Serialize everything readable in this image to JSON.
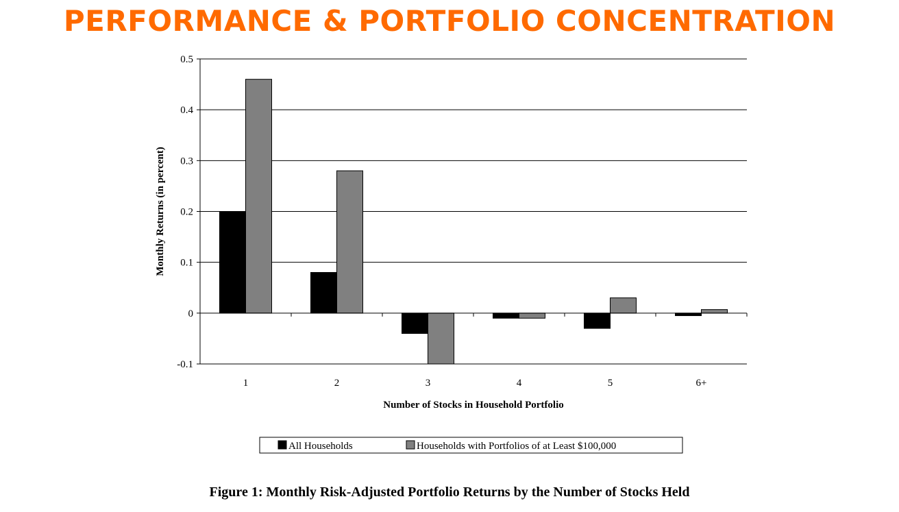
{
  "slide_title": "PERFORMANCE & PORTFOLIO CONCENTRATION",
  "caption": "Figure 1:  Monthly Risk-Adjusted Portfolio Returns by the Number of Stocks Held",
  "colors": {
    "title": "#ff6a00",
    "series_1": "#000000",
    "series_2": "#808080"
  },
  "chart_data": {
    "type": "bar",
    "title": "",
    "categories": [
      "1",
      "2",
      "3",
      "4",
      "5",
      "6+"
    ],
    "series": [
      {
        "name": "All Households",
        "values": [
          0.2,
          0.08,
          -0.04,
          -0.01,
          -0.03,
          -0.005
        ]
      },
      {
        "name": "Households with Portfolios of at Least $100,000",
        "values": [
          0.46,
          0.28,
          -0.1,
          -0.01,
          0.03,
          0.007
        ]
      }
    ],
    "xlabel": "Number of Stocks in Household Portfolio",
    "ylabel": "Monthly Returns (in percent)",
    "ylim": [
      -0.1,
      0.5
    ],
    "yticks": [
      "-0.1",
      "0",
      "0.1",
      "0.2",
      "0.3",
      "0.4",
      "0.5"
    ],
    "grid": true,
    "legend_position": "bottom-center"
  }
}
